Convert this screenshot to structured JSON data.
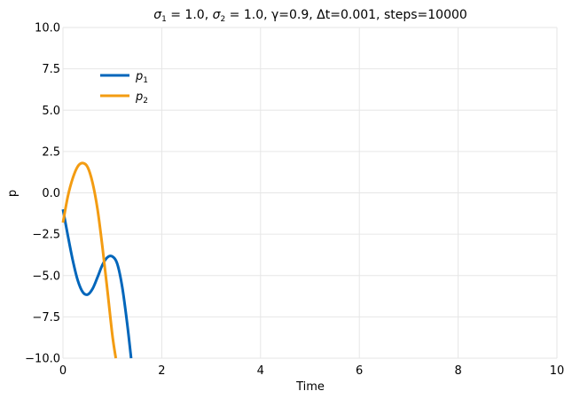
{
  "chart_data": {
    "type": "line",
    "title": "σ₁ = 1.0, σ₂ = 1.0, γ=0.9, Δt=0.001, steps=10000",
    "title_parts": {
      "s1_sym": "σ",
      "s1_sub": "1",
      "s1_rest": " = 1.0, ",
      "s2_sym": "σ",
      "s2_sub": "2",
      "s2_rest": " = 1.0, γ=0.9, Δt=0.001, steps=10000"
    },
    "xlabel": "Time",
    "ylabel": "p",
    "xlim": [
      0,
      10
    ],
    "ylim": [
      -10,
      10
    ],
    "xticks": [
      0,
      2,
      4,
      6,
      8,
      10
    ],
    "xtick_labels": [
      "0",
      "2",
      "4",
      "6",
      "8",
      "10"
    ],
    "yticks": [
      -10,
      -7.5,
      -5,
      -2.5,
      0,
      2.5,
      5,
      7.5,
      10
    ],
    "ytick_labels": [
      "−10.0",
      "−7.5",
      "−5.0",
      "−2.5",
      "0.0",
      "2.5",
      "5.0",
      "7.5",
      "10.0"
    ],
    "grid": true,
    "legend_position": "upper-left",
    "series": [
      {
        "name": "p1",
        "label_main": "p",
        "label_sub": "1",
        "color": "#0066bb",
        "x": [
          0,
          0.1,
          0.2,
          0.3,
          0.4,
          0.5,
          0.6,
          0.7,
          0.8,
          0.9,
          1.0,
          1.1,
          1.2,
          1.3,
          1.38
        ],
        "y": [
          -1.0,
          -2.6,
          -4.1,
          -5.3,
          -6.0,
          -6.15,
          -5.8,
          -5.1,
          -4.35,
          -3.9,
          -3.85,
          -4.3,
          -5.7,
          -7.9,
          -10.0
        ]
      },
      {
        "name": "p2",
        "label_main": "p",
        "label_sub": "2",
        "color": "#f39c12",
        "x": [
          0,
          0.1,
          0.2,
          0.3,
          0.4,
          0.5,
          0.6,
          0.7,
          0.8,
          0.9,
          1.0,
          1.07
        ],
        "y": [
          -1.8,
          -0.2,
          0.9,
          1.6,
          1.8,
          1.55,
          0.6,
          -1.0,
          -3.3,
          -5.9,
          -8.6,
          -10.0
        ]
      }
    ]
  }
}
